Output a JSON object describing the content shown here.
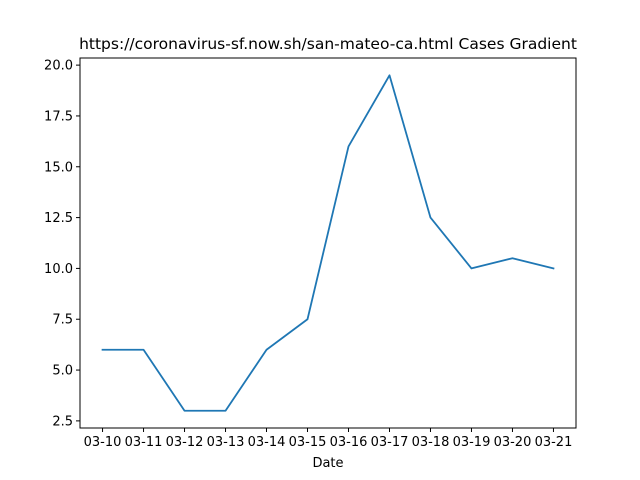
{
  "chart_data": {
    "type": "line",
    "title": "https://coronavirus-sf.now.sh/san-mateo-ca.html Cases Gradient",
    "xlabel": "Date",
    "ylabel": "",
    "categories": [
      "03-10",
      "03-11",
      "03-12",
      "03-13",
      "03-14",
      "03-15",
      "03-16",
      "03-17",
      "03-18",
      "03-19",
      "03-20",
      "03-21"
    ],
    "series": [
      {
        "values": [
          6.0,
          6.0,
          3.0,
          3.0,
          6.0,
          7.5,
          16.0,
          19.5,
          12.5,
          10.0,
          10.5,
          10.0
        ],
        "color": "#1f77b4"
      }
    ],
    "ylim": [
      2.15,
      20.35
    ],
    "yticks": [
      2.5,
      5.0,
      7.5,
      10.0,
      12.5,
      15.0,
      17.5,
      20.0
    ],
    "ytick_labels": [
      "2.5",
      "5.0",
      "7.5",
      "10.0",
      "12.5",
      "15.0",
      "17.5",
      "20.0"
    ],
    "grid": false,
    "legend": "none"
  }
}
